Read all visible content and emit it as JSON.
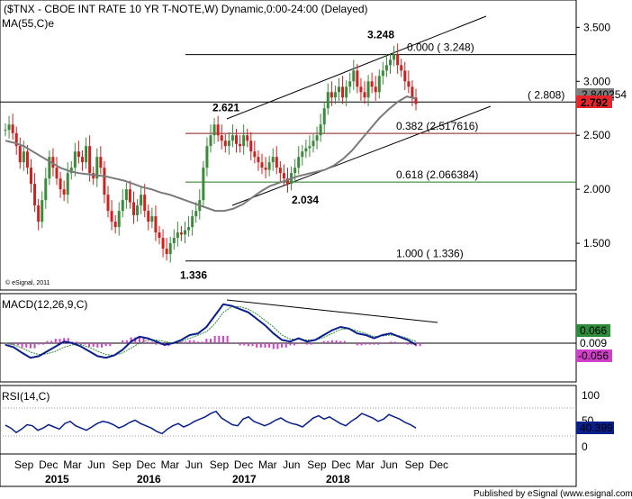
{
  "chart_data": [
    {
      "type": "candlestick",
      "panel": "price",
      "title": "($TNX - CBOE INT RATE 10 YR T-NOTE,W) Dynamic,0:00-24:00 (Delayed)",
      "indicator_label": "MA(55,C)e",
      "watermark": "© eSignal, 2011",
      "ylim": [
        1.1,
        3.72
      ],
      "yticks": [
        "3.500",
        "3.000",
        "2.500",
        "2.000",
        "1.500"
      ],
      "last_price": "2.792",
      "ma_value_partial": "2.840254",
      "colors": {
        "up": "#3c8a3c",
        "down": "#cc2222",
        "ma": "#808080",
        "last": "#e8262a"
      },
      "price_series": [
        2.55,
        2.6,
        2.52,
        2.4,
        2.25,
        2.35,
        2.2,
        2.05,
        1.85,
        1.7,
        1.9,
        2.1,
        2.3,
        2.2,
        2.1,
        2.0,
        1.95,
        2.15,
        2.2,
        2.35,
        2.3,
        2.25,
        2.4,
        2.15,
        2.1,
        2.3,
        2.2,
        1.95,
        1.8,
        1.7,
        1.65,
        1.8,
        1.9,
        2.0,
        1.88,
        1.76,
        1.85,
        1.95,
        1.8,
        1.7,
        1.75,
        1.6,
        1.55,
        1.45,
        1.4,
        1.5,
        1.55,
        1.6,
        1.58,
        1.62,
        1.65,
        1.75,
        1.8,
        1.9,
        2.2,
        2.4,
        2.5,
        2.6,
        2.5,
        2.45,
        2.4,
        2.45,
        2.5,
        2.42,
        2.4,
        2.5,
        2.45,
        2.35,
        2.3,
        2.25,
        2.2,
        2.18,
        2.25,
        2.3,
        2.2,
        2.15,
        2.1,
        2.05,
        2.15,
        2.2,
        2.3,
        2.35,
        2.38,
        2.4,
        2.45,
        2.5,
        2.6,
        2.75,
        2.9,
        2.85,
        2.9,
        2.95,
        2.85,
        2.95,
        3.0,
        3.1,
        2.95,
        2.9,
        2.85,
        3.0,
        2.95,
        2.9,
        3.05,
        3.1,
        3.15,
        3.2,
        3.25,
        3.15,
        3.1,
        3.0,
        2.95,
        2.85,
        2.79
      ],
      "price_dates": {
        "start": "2014-08",
        "end": "2018-12"
      },
      "ma_series": [
        2.45,
        2.43,
        2.4,
        2.35,
        2.3,
        2.25,
        2.2,
        2.17,
        2.15,
        2.14,
        2.13,
        2.12,
        2.1,
        2.08,
        2.05,
        2.02,
        2.0,
        1.97,
        1.95,
        1.92,
        1.89,
        1.86,
        1.83,
        1.8,
        1.8,
        1.82,
        1.86,
        1.92,
        1.98,
        2.03,
        2.06,
        2.09,
        2.12,
        2.14,
        2.16,
        2.18,
        2.22,
        2.28,
        2.36,
        2.46,
        2.56,
        2.66,
        2.74,
        2.81,
        2.86,
        2.84
      ],
      "ma_dates": {
        "start": "2014-08",
        "end": "2018-12"
      }
    },
    {
      "type": "fibonacci",
      "levels": [
        {
          "ratio": "0.000",
          "value": 3.248,
          "text": "0.000 ( 3.248)",
          "color": "#000000"
        },
        {
          "ratio": "0.382",
          "value": 2.517616,
          "text": "0.382 (2.517616)",
          "color": "#8b1a1a"
        },
        {
          "ratio": "0.618",
          "value": 2.066384,
          "text": "0.618 (2.066384)",
          "color": "#207820"
        },
        {
          "ratio": "1.000",
          "value": 1.336,
          "text": "1.000 ( 1.336)",
          "color": "#000000"
        }
      ],
      "support_line": {
        "value": 2.808,
        "text": "( 2.808)"
      },
      "annotations": [
        {
          "text": "3.248",
          "value": 3.248
        },
        {
          "text": "2.621",
          "value": 2.621
        },
        {
          "text": "2.034",
          "value": 2.034
        },
        {
          "text": "1.336",
          "value": 1.336
        }
      ]
    },
    {
      "type": "line",
      "panel": "macd",
      "title": "MACD(12,26,9,C)",
      "values_text": [
        "0.066",
        "0.009",
        "-0.056"
      ],
      "colors": {
        "macd": "#0a1e8c",
        "signal": "#2e8b3c",
        "hist": "#d040c8"
      },
      "macd_series": [
        -0.02,
        -0.05,
        -0.12,
        -0.18,
        -0.16,
        -0.1,
        -0.04,
        0.02,
        0.0,
        -0.04,
        -0.1,
        -0.16,
        -0.18,
        -0.15,
        -0.08,
        0.02,
        0.08,
        0.06,
        0.02,
        -0.02,
        0.0,
        0.04,
        0.1,
        0.12,
        0.2,
        0.34,
        0.48,
        0.46,
        0.42,
        0.38,
        0.3,
        0.22,
        0.12,
        0.04,
        0.02,
        0.06,
        0.02,
        0.04,
        0.1,
        0.16,
        0.2,
        0.18,
        0.12,
        0.1,
        0.06,
        0.1,
        0.12,
        0.08,
        0.04,
        -0.02
      ],
      "signal_series": [
        0.0,
        -0.02,
        -0.06,
        -0.11,
        -0.14,
        -0.13,
        -0.1,
        -0.05,
        -0.02,
        -0.02,
        -0.05,
        -0.1,
        -0.14,
        -0.15,
        -0.12,
        -0.06,
        0.0,
        0.04,
        0.04,
        0.02,
        0.0,
        0.02,
        0.06,
        0.1,
        0.14,
        0.24,
        0.38,
        0.45,
        0.45,
        0.42,
        0.36,
        0.28,
        0.2,
        0.1,
        0.05,
        0.05,
        0.04,
        0.04,
        0.07,
        0.12,
        0.17,
        0.18,
        0.15,
        0.12,
        0.08,
        0.09,
        0.1,
        0.09,
        0.06,
        0.02
      ],
      "macd_dates": {
        "start": "2014-08",
        "end": "2018-12"
      }
    },
    {
      "type": "line",
      "panel": "rsi",
      "title": "RSI(14,C)",
      "value_text": "40.399",
      "yticks": [
        "100",
        "50",
        "0"
      ],
      "ylim": [
        0,
        100
      ],
      "color": "#0a1e8c",
      "rsi_series": [
        45,
        40,
        32,
        38,
        46,
        44,
        36,
        40,
        46,
        42,
        38,
        48,
        52,
        44,
        40,
        36,
        42,
        48,
        52,
        50,
        46,
        40,
        44,
        50,
        54,
        48,
        44,
        40,
        34,
        30,
        38,
        44,
        48,
        42,
        46,
        52,
        56,
        60,
        66,
        70,
        58,
        52,
        46,
        44,
        56,
        60,
        52,
        48,
        44,
        48,
        54,
        58,
        52,
        48,
        46,
        42,
        50,
        58,
        62,
        56,
        60,
        54,
        48,
        44,
        52,
        58,
        66,
        62,
        58,
        52,
        56,
        64,
        60,
        56,
        50,
        46,
        40
      ],
      "rsi_dates": {
        "start": "2014-08",
        "end": "2018-12"
      }
    }
  ],
  "time_axis": {
    "months": [
      "Sep",
      "Dec",
      "Mar",
      "Jun",
      "Sep",
      "Dec",
      "Mar",
      "Jun",
      "Sep",
      "Dec",
      "Mar",
      "Jun",
      "Sep",
      "Dec",
      "Mar",
      "Jun",
      "Sep",
      "Dec"
    ],
    "years": [
      "2015",
      "2016",
      "2017",
      "2018"
    ]
  },
  "footer": "Published by eSignal (www.esignal.com)"
}
